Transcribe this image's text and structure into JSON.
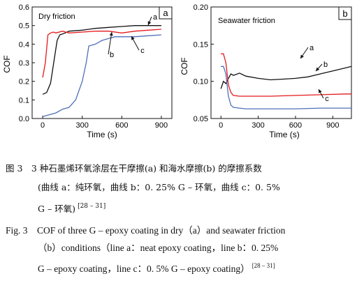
{
  "chart_data": [
    {
      "panel": "a",
      "type": "line",
      "title": "Dry friction",
      "xlabel": "Time (s)",
      "ylabel": "COF",
      "xlim": [
        -80,
        980
      ],
      "ylim": [
        0,
        0.6
      ],
      "xticks": [
        0,
        300,
        600,
        900
      ],
      "yticks": [
        0.0,
        0.1,
        0.2,
        0.3,
        0.4,
        0.5,
        0.6
      ],
      "ytick_labels": [
        "0.0",
        "0.1",
        "0.2",
        "0.3",
        "0.4",
        "0.5",
        "0.6"
      ],
      "series": [
        {
          "name": "a",
          "color": "#111111",
          "x": [
            0,
            30,
            60,
            90,
            110,
            130,
            150,
            170,
            200,
            300,
            400,
            500,
            600,
            700,
            800,
            900
          ],
          "y": [
            0.13,
            0.14,
            0.19,
            0.33,
            0.42,
            0.45,
            0.455,
            0.46,
            0.47,
            0.475,
            0.485,
            0.49,
            0.495,
            0.5,
            0.5,
            0.5
          ]
        },
        {
          "name": "b",
          "color": "#e41a1c",
          "x": [
            0,
            20,
            40,
            60,
            80,
            100,
            150,
            200,
            300,
            400,
            500,
            600,
            700,
            800,
            900
          ],
          "y": [
            0.22,
            0.3,
            0.45,
            0.46,
            0.465,
            0.46,
            0.47,
            0.46,
            0.465,
            0.47,
            0.47,
            0.46,
            0.47,
            0.475,
            0.48
          ]
        },
        {
          "name": "c",
          "color": "#4f6fb8",
          "x": [
            0,
            100,
            150,
            200,
            250,
            300,
            330,
            350,
            400,
            450,
            500,
            550,
            600,
            700,
            800,
            900
          ],
          "y": [
            0.01,
            0.03,
            0.05,
            0.06,
            0.1,
            0.2,
            0.3,
            0.39,
            0.4,
            0.42,
            0.43,
            0.44,
            0.44,
            0.44,
            0.445,
            0.45
          ]
        }
      ],
      "annotations": [
        "a",
        "b",
        "c"
      ],
      "panel_label": "a"
    },
    {
      "panel": "b",
      "type": "line",
      "title": "Seawater friction",
      "xlabel": "Time (s)",
      "ylabel": "COF",
      "xlim": [
        -80,
        1050
      ],
      "ylim": [
        0.05,
        0.2
      ],
      "xticks": [
        0,
        300,
        600,
        900
      ],
      "yticks": [
        0.05,
        0.1,
        0.15,
        0.2
      ],
      "ytick_labels": [
        "0.05",
        "0.10",
        "0.15",
        "0.20"
      ],
      "series": [
        {
          "name": "a",
          "color": "#111111",
          "x": [
            0,
            20,
            40,
            60,
            80,
            100,
            150,
            200,
            300,
            400,
            500,
            600,
            700,
            800,
            900,
            1000,
            1050
          ],
          "y": [
            0.09,
            0.1,
            0.097,
            0.104,
            0.11,
            0.108,
            0.111,
            0.107,
            0.104,
            0.102,
            0.103,
            0.104,
            0.106,
            0.11,
            0.114,
            0.118,
            0.12
          ]
        },
        {
          "name": "b",
          "color": "#e41a1c",
          "x": [
            0,
            20,
            40,
            60,
            80,
            100,
            150,
            200,
            400,
            600,
            800,
            1000,
            1050
          ],
          "y": [
            0.137,
            0.137,
            0.125,
            0.095,
            0.085,
            0.081,
            0.08,
            0.08,
            0.08,
            0.081,
            0.082,
            0.083,
            0.083
          ]
        },
        {
          "name": "c",
          "color": "#4f6fb8",
          "x": [
            0,
            20,
            40,
            60,
            80,
            100,
            150,
            200,
            400,
            600,
            800,
            1000,
            1050
          ],
          "y": [
            0.12,
            0.12,
            0.11,
            0.08,
            0.068,
            0.065,
            0.064,
            0.063,
            0.063,
            0.063,
            0.064,
            0.064,
            0.064
          ]
        }
      ],
      "annotations": [
        "a",
        "b",
        "c"
      ],
      "panel_label": "b"
    }
  ],
  "caption_cn": {
    "line1": "图 3　3 种石墨烯环氧涂层在干摩擦(a) 和海水摩擦(b) 的摩擦系数",
    "line2": "(曲线 a：纯环氧，曲线 b：0. 25% G – 环氧，曲线 c：0. 5%",
    "line3": "G – 环氧)",
    "ref": "[28 – 31]"
  },
  "caption_en": {
    "line1": "Fig. 3　COF of three G – epoxy coating in dry（a）and seawater friction",
    "line2": "（b）conditions（line a：neat epoxy coating，line b：0. 25%",
    "line3": "G – epoxy coating，line c：0. 5% G –  epoxy coating）",
    "ref": "[28 – 31]"
  }
}
